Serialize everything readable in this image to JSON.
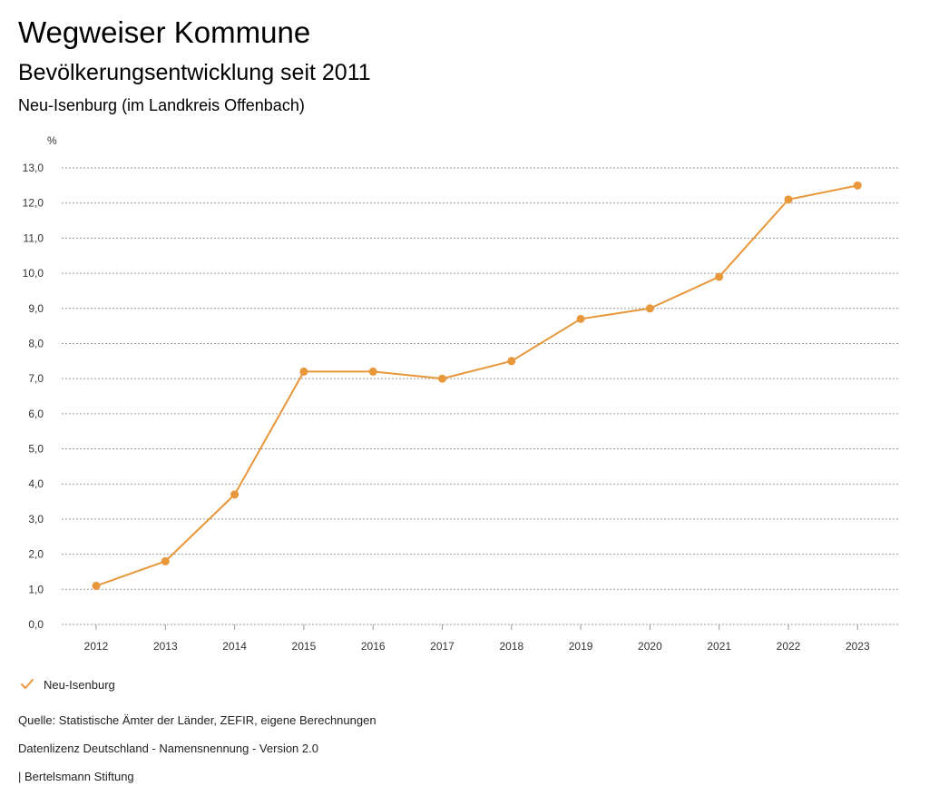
{
  "header": {
    "title": "Wegweiser Kommune",
    "subtitle": "Bevölkerungsentwicklung seit 2011",
    "region": "Neu-Isenburg (im Landkreis Offenbach)"
  },
  "chart_data": {
    "type": "line",
    "title": "Bevölkerungsentwicklung seit 2011",
    "ylabel": "%",
    "xlabel": "",
    "ylim": [
      0,
      13
    ],
    "yticks": [
      "0,0",
      "1,0",
      "2,0",
      "3,0",
      "4,0",
      "5,0",
      "6,0",
      "7,0",
      "8,0",
      "9,0",
      "10,0",
      "11,0",
      "12,0",
      "13,0"
    ],
    "grid": true,
    "legend_position": "bottom-left",
    "x": [
      "2012",
      "2013",
      "2014",
      "2015",
      "2016",
      "2017",
      "2018",
      "2019",
      "2020",
      "2021",
      "2022",
      "2023"
    ],
    "series": [
      {
        "name": "Neu-Isenburg",
        "color": "#E8973A",
        "values": [
          1.1,
          1.8,
          3.7,
          7.2,
          7.2,
          7.0,
          7.5,
          8.7,
          9.0,
          9.9,
          12.1,
          12.5
        ]
      }
    ]
  },
  "legend": {
    "label": "Neu-Isenburg",
    "icon": "checkmark-icon"
  },
  "footer": {
    "source": "Quelle: Statistische Ämter der Länder, ZEFIR, eigene Berechnungen",
    "license": "Datenlizenz Deutschland - Namensnennung - Version 2.0",
    "credit": "| Bertelsmann Stiftung"
  }
}
